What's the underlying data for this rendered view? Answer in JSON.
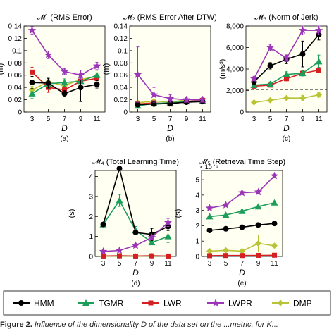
{
  "x_label": "D",
  "colors": {
    "HMM": "#000000",
    "TGMR": "#1a9e5a",
    "LWR": "#d42020",
    "LWPR": "#9b36b7",
    "DMP": "#b8c436"
  },
  "legend": [
    "HMM",
    "TGMR",
    "LWR",
    "LWPR",
    "DMP"
  ],
  "caption": {
    "lead": "Figure 2.",
    "text": "Influence of the dimensionality D of the data set on the ...metric, for K..."
  },
  "chart_data": [
    {
      "type": "line",
      "title": "𝓜₁ (RMS Error)",
      "sublabel": "(a)",
      "ylabel": "(m)",
      "xlabel": "D",
      "x": [
        3,
        5,
        7,
        9,
        11
      ],
      "xlim": [
        2,
        12
      ],
      "ylim": [
        0,
        0.14
      ],
      "yticks": [
        "0",
        "0.02",
        "0.04",
        "0.06",
        "0.08",
        "0.1",
        "0.12",
        "0.14"
      ],
      "series": [
        {
          "name": "HMM",
          "values": [
            0.048,
            0.047,
            0.03,
            0.04,
            0.045
          ],
          "err": [
            0.01,
            0.008,
            0.005,
            0.023,
            0.006
          ]
        },
        {
          "name": "TGMR",
          "values": [
            0.03,
            0.046,
            0.048,
            0.05,
            0.06
          ],
          "err": [
            0.008,
            0.008,
            0.006,
            0.006,
            0.008
          ]
        },
        {
          "name": "LWR",
          "values": [
            0.065,
            0.04,
            0.036,
            0.05,
            0.055
          ],
          "err": [
            0.008,
            0.008,
            0.006,
            0.006,
            0.006
          ]
        },
        {
          "name": "LWPR",
          "values": [
            0.133,
            0.093,
            0.066,
            0.06,
            0.075
          ],
          "err": [
            0.006,
            0.006,
            0.005,
            0.008,
            0.006
          ]
        },
        {
          "name": "DMP",
          "values": [
            0.036,
            0.049,
            0.043,
            0.053,
            0.058
          ],
          "err": [
            0.006,
            0.006,
            0.006,
            0.006,
            0.006
          ]
        }
      ]
    },
    {
      "type": "line",
      "title": "𝓜₂ (RMS Error After DTW)",
      "sublabel": "(b)",
      "ylabel": "(m)",
      "xlabel": "D",
      "x": [
        3,
        5,
        7,
        9,
        11
      ],
      "xlim": [
        2,
        12
      ],
      "ylim": [
        0,
        0.14
      ],
      "yticks": [
        "0",
        "0.02",
        "0.04",
        "0.06",
        "0.08",
        "0.1",
        "0.12",
        "0.14"
      ],
      "series": [
        {
          "name": "HMM",
          "values": [
            0.012,
            0.013,
            0.014,
            0.016,
            0.017
          ],
          "err": [
            0.003,
            0.003,
            0.003,
            0.003,
            0.003
          ]
        },
        {
          "name": "TGMR",
          "values": [
            0.01,
            0.014,
            0.015,
            0.017,
            0.018
          ],
          "err": [
            0.003,
            0.003,
            0.003,
            0.003,
            0.003
          ]
        },
        {
          "name": "LWR",
          "values": [
            0.013,
            0.015,
            0.013,
            0.017,
            0.019
          ],
          "err": [
            0.003,
            0.003,
            0.003,
            0.003,
            0.003
          ]
        },
        {
          "name": "LWPR",
          "values": [
            0.061,
            0.028,
            0.022,
            0.02,
            0.02
          ],
          "err": [
            0.045,
            0.012,
            0.006,
            0.004,
            0.004
          ]
        },
        {
          "name": "DMP",
          "values": [
            0.015,
            0.018,
            0.016,
            0.02,
            0.021
          ],
          "err": [
            0.003,
            0.003,
            0.003,
            0.003,
            0.003
          ]
        }
      ]
    },
    {
      "type": "line",
      "title": "𝓜₃ (Norm of Jerk)",
      "sublabel": "(c)",
      "ylabel": "(m/s³)",
      "xlabel": "D",
      "x": [
        3,
        5,
        7,
        9,
        11
      ],
      "xlim": [
        2,
        12
      ],
      "ylim": [
        0,
        8000
      ],
      "yticks": [
        "0",
        "2,000",
        "4,000",
        "6,000",
        "8,000"
      ],
      "hline": 2100,
      "series": [
        {
          "name": "HMM",
          "values": [
            2800,
            4300,
            4900,
            5400,
            7200
          ],
          "err": [
            200,
            300,
            400,
            1200,
            500
          ]
        },
        {
          "name": "TGMR",
          "values": [
            2500,
            2600,
            3500,
            3600,
            4700
          ],
          "err": [
            150,
            200,
            250,
            250,
            600
          ]
        },
        {
          "name": "LWR",
          "values": [
            2400,
            2500,
            3100,
            3600,
            3900
          ],
          "err": [
            100,
            150,
            200,
            200,
            250
          ]
        },
        {
          "name": "LWPR",
          "values": [
            3100,
            6000,
            5000,
            7600,
            7600
          ],
          "err": [
            200,
            300,
            300,
            400,
            400
          ]
        },
        {
          "name": "DMP",
          "values": [
            900,
            1100,
            1300,
            1300,
            1600
          ],
          "err": [
            100,
            150,
            150,
            250,
            200
          ]
        }
      ]
    },
    {
      "type": "line",
      "title": "𝓜₄ (Total Learning Time)",
      "sublabel": "(d)",
      "ylabel": "(s)",
      "xlabel": "D",
      "x": [
        3,
        5,
        7,
        9,
        11
      ],
      "xlim": [
        2,
        12
      ],
      "ylim": [
        0,
        4.3
      ],
      "yticks": [
        "0",
        "1",
        "2",
        "3",
        "4"
      ],
      "series": [
        {
          "name": "HMM",
          "values": [
            1.6,
            4.4,
            1.2,
            1.1,
            1.5
          ],
          "err": [
            0.1,
            0.1,
            0.1,
            0.3,
            0.2
          ]
        },
        {
          "name": "TGMR",
          "values": [
            1.6,
            2.8,
            1.3,
            0.7,
            1.0
          ],
          "err": [
            0.1,
            0.3,
            0.2,
            0.1,
            0.3
          ]
        },
        {
          "name": "LWR",
          "values": [
            0.02,
            0.03,
            0.02,
            0.03,
            0.02
          ],
          "err": [
            0.01,
            0.01,
            0.01,
            0.01,
            0.01
          ]
        },
        {
          "name": "LWPR",
          "values": [
            0.25,
            0.3,
            0.55,
            0.95,
            1.7
          ],
          "err": [
            0.05,
            0.05,
            0.1,
            0.1,
            0.2
          ]
        },
        {
          "name": "DMP",
          "values": [
            0.01,
            0.02,
            0.01,
            0.02,
            0.02
          ],
          "err": [
            0.01,
            0.01,
            0.01,
            0.01,
            0.01
          ]
        }
      ]
    },
    {
      "type": "line",
      "title": "𝓜₅ (Retrieval Time Step)",
      "sublabel": "(e)",
      "ylabel": "(s)",
      "xlabel": "D",
      "scale_note": "× 10⁻⁴",
      "x": [
        3,
        5,
        7,
        9,
        11
      ],
      "xlim": [
        2,
        12
      ],
      "ylim": [
        0,
        5.6
      ],
      "yticks": [
        "0",
        "1",
        "2",
        "3",
        "4",
        "5"
      ],
      "series": [
        {
          "name": "HMM",
          "values": [
            1.7,
            1.8,
            1.9,
            2.05,
            2.15
          ],
          "err": [
            0.05,
            0.05,
            0.05,
            0.05,
            0.05
          ]
        },
        {
          "name": "TGMR",
          "values": [
            2.6,
            2.7,
            2.95,
            3.25,
            3.5
          ],
          "err": [
            0.05,
            0.05,
            0.05,
            0.05,
            0.05
          ]
        },
        {
          "name": "LWR",
          "values": [
            0.05,
            0.06,
            0.06,
            0.07,
            0.08
          ],
          "err": [
            0.01,
            0.01,
            0.01,
            0.01,
            0.01
          ]
        },
        {
          "name": "LWPR",
          "values": [
            3.15,
            3.35,
            4.15,
            4.2,
            5.25
          ],
          "err": [
            0.1,
            0.1,
            0.1,
            0.1,
            0.1
          ]
        },
        {
          "name": "DMP",
          "values": [
            0.35,
            0.4,
            0.35,
            0.85,
            0.7
          ],
          "err": [
            0.05,
            0.05,
            0.05,
            0.55,
            0.1
          ]
        }
      ]
    }
  ]
}
